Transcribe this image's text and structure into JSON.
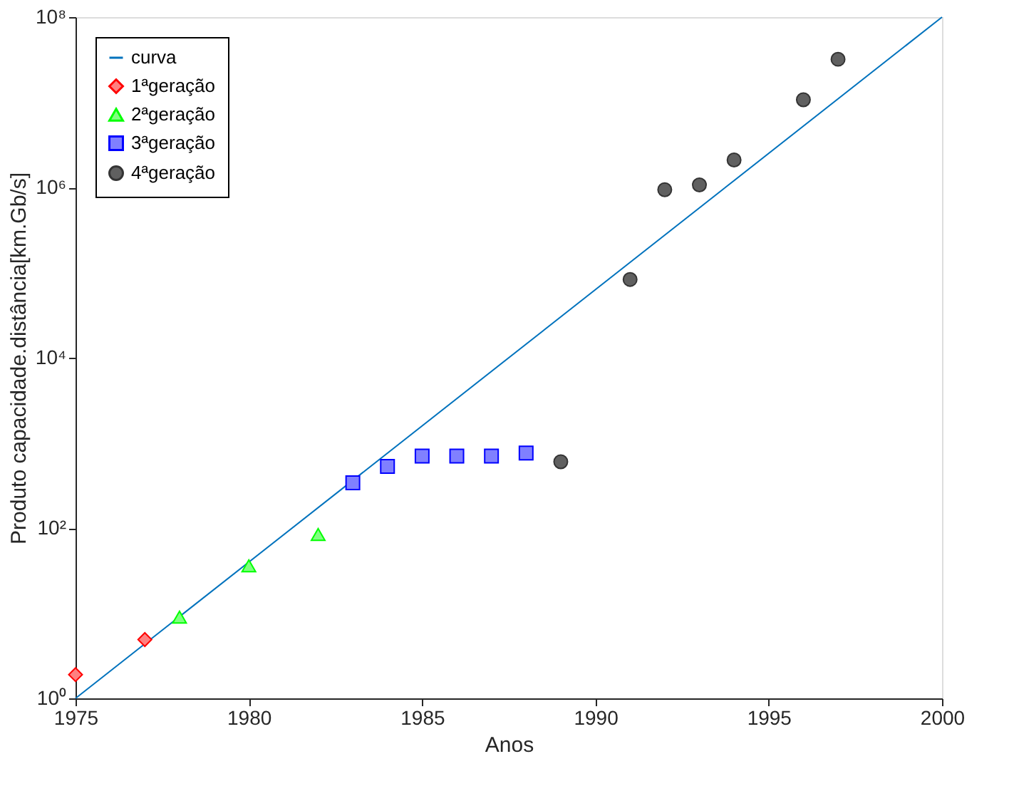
{
  "chart_data": {
    "type": "scatter",
    "xlabel": "Anos",
    "ylabel": "Produto capacidade.distância[km.Gb/s]",
    "log": "y",
    "grid": false,
    "legend": "top left",
    "xlim": [
      1975,
      2000
    ],
    "xticks": [
      1975,
      1980,
      1985,
      1990,
      1995,
      2000
    ],
    "ylim": [
      1,
      100000000
    ],
    "yticks": [
      {
        "value": 1,
        "label": "10⁰"
      },
      {
        "value": 100,
        "label": "10²"
      },
      {
        "value": 10000,
        "label": "10⁴"
      },
      {
        "value": 1000000,
        "label": "10⁶"
      },
      {
        "value": 100000000,
        "label": "10⁸"
      }
    ],
    "series": [
      {
        "name": "curva",
        "type": "line",
        "color": "#0072bd",
        "marker": "none",
        "x": [
          1975,
          2000
        ],
        "values": [
          1,
          100000000
        ]
      },
      {
        "name": "1ªgeração",
        "color": "#ff8080",
        "marker": "diamond",
        "x": [
          1975,
          1977
        ],
        "values": [
          1.9,
          4.9
        ]
      },
      {
        "name": "2ªgeração",
        "color": "#80ff80",
        "marker": "triangle",
        "x": [
          1978,
          1980,
          1982
        ],
        "values": [
          9,
          36,
          84
        ]
      },
      {
        "name": "3ªgeração",
        "color": "#8080ff",
        "marker": "square",
        "x": [
          1983,
          1984,
          1985,
          1986,
          1987,
          1988
        ],
        "values": [
          340,
          530,
          700,
          700,
          700,
          760
        ]
      },
      {
        "name": "4ªgeração",
        "color": "#606060",
        "marker": "circle",
        "x": [
          1989,
          1991,
          1992,
          1993,
          1994,
          1996,
          1997
        ],
        "values": [
          600,
          83000,
          940000,
          1070000,
          2100000,
          10700000,
          32000000
        ]
      }
    ]
  }
}
